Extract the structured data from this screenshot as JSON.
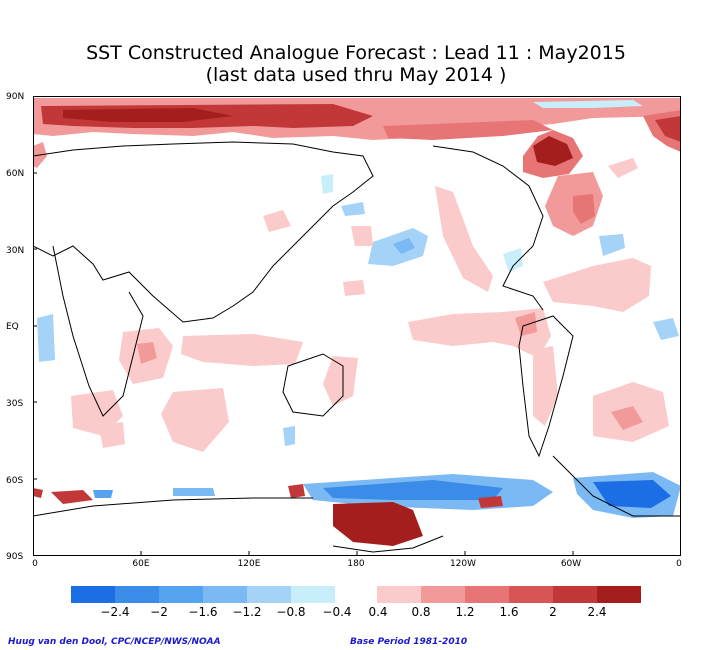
{
  "title_line1": "SST Constructed Analogue Forecast : Lead 11 : May2015",
  "title_line2": "(last data used thru May 2014 )",
  "y_ticks": [
    "90N",
    "60N",
    "30N",
    "EQ",
    "30S",
    "60S",
    "90S"
  ],
  "x_ticks": [
    "0",
    "60E",
    "120E",
    "180",
    "120W",
    "60W",
    "0"
  ],
  "legend": {
    "negative_colors": [
      "#1b6ee3",
      "#3a8ce8",
      "#55a3ee",
      "#7ab9f3",
      "#a4d3f7",
      "#c8eefb"
    ],
    "positive_colors": [
      "#fbcaca",
      "#f29a9a",
      "#e87575",
      "#d85555",
      "#c23838",
      "#a51e1e"
    ],
    "negative_labels": [
      "−2.4",
      "−2",
      "−1.6",
      "−1.2",
      "−0.8",
      "−0.4"
    ],
    "positive_labels": [
      "0.4",
      "0.8",
      "1.2",
      "1.6",
      "2",
      "2.4"
    ]
  },
  "footer_left": "Huug van den Dool, CPC/NCEP/NWS/NOAA",
  "footer_right": "Base Period 1981-2010"
}
